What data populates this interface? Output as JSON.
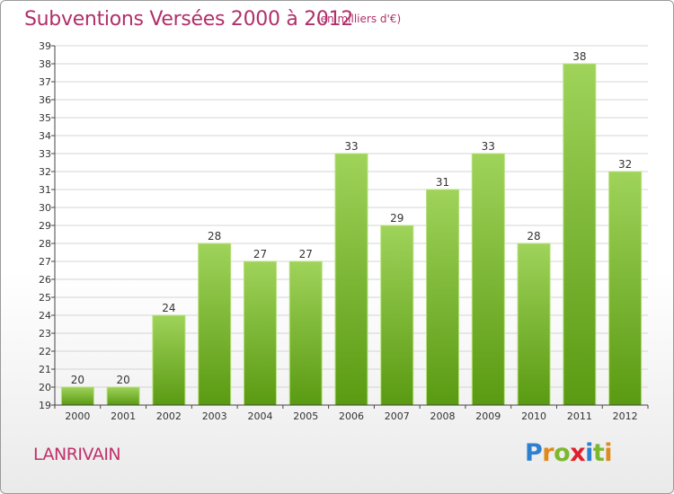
{
  "title": "Subventions Versées 2000 à 2012",
  "subtitle": "(en milliers d'€)",
  "commune": "LANRIVAIN",
  "logo": {
    "letters": [
      "P",
      "r",
      "o",
      "x",
      "i",
      "t",
      "i"
    ],
    "colors": [
      "#2f7fd0",
      "#e08a1e",
      "#7cb82f",
      "#e0202c",
      "#2f7fd0",
      "#7cb82f",
      "#e08a1e"
    ]
  },
  "colors": {
    "title": "#b0306a",
    "bar_top": "#9fd35a",
    "bar_bottom": "#5a9a12",
    "grid": "#d4d4d4",
    "axis": "#444444"
  },
  "chart_data": {
    "type": "bar",
    "categories": [
      "2000",
      "2001",
      "2002",
      "2003",
      "2004",
      "2005",
      "2006",
      "2007",
      "2008",
      "2009",
      "2010",
      "2011",
      "2012"
    ],
    "values": [
      20,
      20,
      24,
      28,
      27,
      27,
      33,
      29,
      31,
      33,
      28,
      38,
      32
    ],
    "ylim": [
      19,
      39
    ],
    "yticks": [
      19,
      20,
      21,
      22,
      23,
      24,
      25,
      26,
      27,
      28,
      29,
      30,
      31,
      32,
      33,
      34,
      35,
      36,
      37,
      38,
      39
    ],
    "grid": true,
    "data_labels": true
  }
}
